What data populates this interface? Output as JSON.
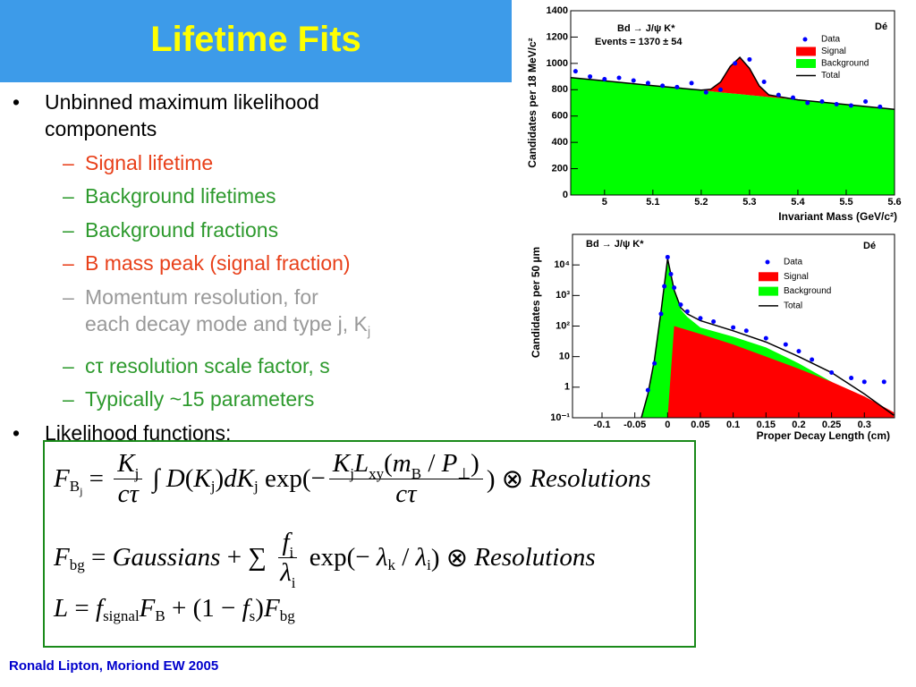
{
  "title": "Lifetime Fits",
  "bullets": [
    {
      "text": "Unbinned maximum likelihood components",
      "level": 1,
      "color": "#000000"
    },
    {
      "text": "Signal lifetime",
      "level": 2,
      "color": "#e8401a"
    },
    {
      "text": "Background lifetimes",
      "level": 2,
      "color": "#2e9a2e"
    },
    {
      "text": "Background fractions",
      "level": 2,
      "color": "#2e9a2e"
    },
    {
      "text": "B mass peak (signal fraction)",
      "level": 2,
      "color": "#e8401a"
    },
    {
      "text": "Momentum resolution, for\neach decay mode and type j, K",
      "sub": "j",
      "level": 2,
      "color": "#999999"
    },
    {
      "text": "cτ resolution scale factor, s",
      "level": 2,
      "color": "#2e9a2e"
    },
    {
      "text": "Typically ~15 parameters",
      "level": 2,
      "color": "#2e9a2e"
    },
    {
      "text": "Likelihood functions:",
      "level": 1,
      "color": "#000000"
    }
  ],
  "formulas": [
    [
      {
        "t": "F",
        "italic": true
      },
      {
        "sub": "B"
      },
      {
        "sub2": "j"
      },
      {
        "t": " = "
      },
      {
        "num": [
          {
            "t": "K",
            "italic": true
          },
          {
            "sub": "j"
          }
        ],
        "den": [
          {
            "t": "cτ",
            "italic": true
          }
        ]
      },
      {
        "t": " ∫ "
      },
      {
        "t": "D",
        "italic": true
      },
      {
        "t": "("
      },
      {
        "t": "K",
        "italic": true
      },
      {
        "sub": "j"
      },
      {
        "t": ")"
      },
      {
        "t": "dK",
        "italic": true
      },
      {
        "sub": "j"
      },
      {
        "t": " exp(−"
      },
      {
        "num": [
          {
            "t": "K",
            "italic": true
          },
          {
            "sub": "j"
          },
          {
            "t": "L",
            "italic": true
          },
          {
            "sub": "xy"
          },
          {
            "t": "("
          },
          {
            "t": "m",
            "italic": true
          },
          {
            "sub": "B"
          },
          {
            "t": " / "
          },
          {
            "t": "P",
            "italic": true
          },
          {
            "sub": "⊥"
          },
          {
            "t": ")"
          }
        ],
        "den": [
          {
            "t": "cτ",
            "italic": true
          }
        ]
      },
      {
        "t": ") ⊗ "
      },
      {
        "t": "Resolutions",
        "italic": true
      }
    ],
    [
      {
        "t": "F",
        "italic": true
      },
      {
        "sub": "bg"
      },
      {
        "t": " = "
      },
      {
        "t": "Gaussians",
        "italic": true
      },
      {
        "t": " + ∑ "
      },
      {
        "num": [
          {
            "t": "f",
            "italic": true
          },
          {
            "sub": "i"
          }
        ],
        "den": [
          {
            "t": "λ",
            "italic": true
          },
          {
            "sub": "i"
          }
        ]
      },
      {
        "t": " exp(− "
      },
      {
        "t": "λ",
        "italic": true
      },
      {
        "sub": "k"
      },
      {
        "t": " / "
      },
      {
        "t": "λ",
        "italic": true
      },
      {
        "sub": "i"
      },
      {
        "t": ") ⊗ "
      },
      {
        "t": "Resolutions",
        "italic": true
      }
    ],
    [
      {
        "t": "L",
        "italic": true
      },
      {
        "t": " = "
      },
      {
        "t": "f",
        "italic": true
      },
      {
        "sub": "signal"
      },
      {
        "t": "F",
        "italic": true
      },
      {
        "sub": "B"
      },
      {
        "t": " + (1 − "
      },
      {
        "t": "f",
        "italic": true
      },
      {
        "sub": "s"
      },
      {
        "t": ")"
      },
      {
        "t": "F",
        "italic": true
      },
      {
        "sub": "bg"
      }
    ]
  ],
  "footer": "Ronald Lipton, Moriond EW 2005",
  "chart_data": [
    {
      "type": "area",
      "stacked": true,
      "annotations": [
        "Bd → J/ψ K*",
        "Events =  1370 ± 54",
        "Dé"
      ],
      "xlabel": "Invariant Mass  (GeV/c²)",
      "ylabel": "Candidates per  18 MeV/c²",
      "xlim": [
        4.93,
        5.6
      ],
      "xticks": [
        5,
        5.1,
        5.2,
        5.3,
        5.4,
        5.5,
        5.6
      ],
      "ylim": [
        0,
        1400
      ],
      "yticks": [
        0,
        200,
        400,
        600,
        800,
        1000,
        1200,
        1400
      ],
      "legend": "upper right",
      "series": [
        {
          "name": "Data",
          "color": "#0000ff",
          "kind": "points",
          "x": [
            4.94,
            4.97,
            5.0,
            5.03,
            5.06,
            5.09,
            5.12,
            5.15,
            5.18,
            5.21,
            5.24,
            5.27,
            5.3,
            5.33,
            5.36,
            5.39,
            5.42,
            5.45,
            5.48,
            5.51,
            5.54,
            5.57
          ],
          "values": [
            940,
            900,
            880,
            890,
            870,
            850,
            830,
            820,
            850,
            780,
            800,
            1000,
            1030,
            860,
            760,
            740,
            700,
            710,
            690,
            680,
            710,
            670
          ]
        },
        {
          "name": "Signal",
          "color": "#ff0000",
          "kind": "area",
          "x": [
            4.93,
            5.0,
            5.1,
            5.2,
            5.22,
            5.24,
            5.26,
            5.28,
            5.3,
            5.32,
            5.34,
            5.4,
            5.5,
            5.6
          ],
          "values": [
            0,
            0,
            0,
            2,
            16,
            78,
            203,
            280,
            203,
            78,
            16,
            0,
            0,
            0
          ]
        },
        {
          "name": "Background",
          "color": "#00ff00",
          "kind": "area",
          "x": [
            4.93,
            5.0,
            5.1,
            5.2,
            5.22,
            5.24,
            5.26,
            5.28,
            5.3,
            5.32,
            5.34,
            5.4,
            5.5,
            5.6
          ],
          "values": [
            892,
            867,
            831,
            795,
            788,
            780,
            773,
            766,
            759,
            752,
            744,
            723,
            687,
            651
          ]
        },
        {
          "name": "Total",
          "color": "#000000",
          "kind": "line",
          "x": [
            4.93,
            5.0,
            5.1,
            5.2,
            5.22,
            5.24,
            5.26,
            5.28,
            5.3,
            5.32,
            5.34,
            5.4,
            5.5,
            5.6
          ],
          "values": [
            892,
            867,
            831,
            797,
            804,
            858,
            976,
            1046,
            962,
            830,
            760,
            723,
            687,
            651
          ]
        }
      ]
    },
    {
      "type": "area",
      "log": true,
      "annotations": [
        "Bd → J/ψ K*",
        "Dé"
      ],
      "xlabel": "Proper Decay Length  (cm)",
      "ylabel": "Candidates per 50  µm",
      "xlim": [
        -0.145,
        0.346
      ],
      "xticks": [
        -0.1,
        -0.05,
        0,
        0.05,
        0.1,
        0.15,
        0.2,
        0.25,
        0.3
      ],
      "ylim": [
        0.1,
        100000
      ],
      "yticks": [
        {
          "value": 0.1,
          "label": "10⁻¹"
        },
        1,
        10,
        {
          "value": 100,
          "label": "10²"
        },
        {
          "value": 1000,
          "label": "10³"
        },
        {
          "value": 10000,
          "label": "10⁴"
        }
      ],
      "legend": "upper right",
      "series": [
        {
          "name": "Data",
          "color": "#0000ff",
          "kind": "points",
          "x": [
            -0.03,
            -0.02,
            -0.01,
            -0.005,
            0,
            0.005,
            0.01,
            0.02,
            0.03,
            0.05,
            0.07,
            0.1,
            0.12,
            0.15,
            0.18,
            0.2,
            0.22,
            0.25,
            0.28,
            0.3,
            0.33
          ],
          "values": [
            0.8,
            6,
            250,
            2000,
            18000,
            5000,
            1800,
            500,
            300,
            180,
            140,
            90,
            70,
            40,
            25,
            15,
            8,
            3,
            2,
            1.5,
            1.5
          ]
        },
        {
          "name": "Signal",
          "color": "#ff0000",
          "kind": "area",
          "x": [
            0,
            0.01,
            0.05,
            0.1,
            0.15,
            0.2,
            0.25,
            0.3,
            0.345
          ],
          "values": [
            0.1,
            100,
            55,
            25,
            10,
            4,
            1.5,
            0.5,
            0.15
          ]
        },
        {
          "name": "Background",
          "color": "#00ff00",
          "kind": "area",
          "x": [
            -0.04,
            -0.03,
            -0.02,
            -0.01,
            0,
            0.01,
            0.02,
            0.03,
            0.05,
            0.1,
            0.15,
            0.2,
            0.25,
            0.3
          ],
          "values": [
            0.1,
            0.6,
            8,
            300,
            16000,
            1400,
            350,
            200,
            90,
            45,
            20,
            6,
            1.5,
            0.1
          ]
        },
        {
          "name": "Total",
          "color": "#000000",
          "kind": "line",
          "x": [
            -0.04,
            -0.03,
            -0.02,
            -0.01,
            0,
            0.01,
            0.02,
            0.03,
            0.05,
            0.1,
            0.15,
            0.2,
            0.25,
            0.3,
            0.345
          ],
          "values": [
            0.1,
            0.6,
            8,
            300,
            16000,
            1500,
            400,
            250,
            150,
            70,
            30,
            10,
            3,
            0.6,
            0.12
          ]
        }
      ]
    }
  ]
}
